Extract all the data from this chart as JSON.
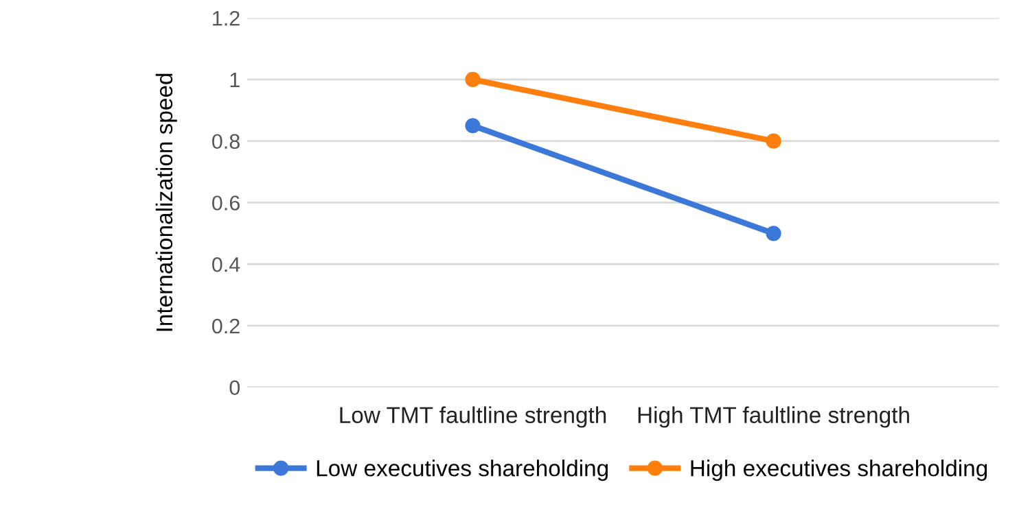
{
  "chart_data": {
    "type": "line",
    "ylabel": "Internationalization speed",
    "categories": [
      "Low TMT faultline strength",
      "High TMT faultline strength"
    ],
    "series": [
      {
        "name": "Low executives shareholding",
        "color": "#3c78d8",
        "values": [
          0.85,
          0.5
        ]
      },
      {
        "name": "High executives shareholding",
        "color": "#ff7f0e",
        "values": [
          1.0,
          0.8
        ]
      }
    ],
    "ylim": [
      0,
      1.2
    ],
    "yticks": [
      0,
      0.2,
      0.4,
      0.6,
      0.8,
      1,
      1.2
    ],
    "grid": "y",
    "legend": "bottom",
    "marker": "circle",
    "line_style": "solid"
  }
}
